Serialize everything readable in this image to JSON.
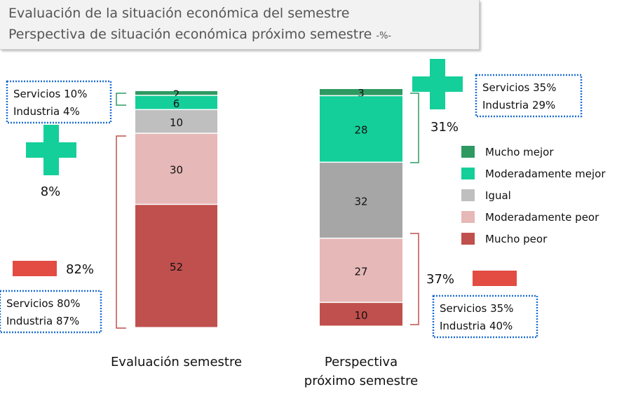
{
  "title_line1": "Evaluación de la situación económica del semestre",
  "title_line2": "Perspectiva de situación económica próximo semestre",
  "title_suffix": "-%-",
  "chart_data": {
    "type": "bar",
    "stacked": true,
    "categories": [
      "Evaluación semestre",
      "Perspectiva próximo semestre"
    ],
    "series": [
      {
        "name": "Mucho mejor",
        "values": [
          2,
          3
        ],
        "color": "#2e9a62"
      },
      {
        "name": "Moderadamente mejor",
        "values": [
          6,
          28
        ],
        "color": "#14cf9a"
      },
      {
        "name": "Igual",
        "values": [
          10,
          32
        ],
        "color": "#bfbfbf",
        "color2": "#a6a6a6"
      },
      {
        "name": "Moderadamente peor",
        "values": [
          30,
          27
        ],
        "color": "#e6b8b7"
      },
      {
        "name": "Mucho peor",
        "values": [
          52,
          10
        ],
        "color": "#c0504d"
      }
    ],
    "ylim": [
      0,
      100
    ],
    "legend": "right",
    "annotations": {
      "eval": {
        "positive_total": "8%",
        "negative_total": "82%",
        "positive_box": [
          "Servicios 10%",
          "Industria 4%"
        ],
        "negative_box": [
          "Servicios 80%",
          "Industria 87%"
        ]
      },
      "persp": {
        "positive_total": "31%",
        "negative_total": "37%",
        "positive_box": [
          "Servicios 35%",
          "Industria 29%"
        ],
        "negative_box": [
          "Servicios 35%",
          "Industria 40%"
        ]
      }
    }
  },
  "colors": {
    "plus": "#14cf9a",
    "minus": "#e24c43",
    "box_border": "#1f6fd1",
    "bracket_green": "#2e9a62",
    "bracket_red": "#c0504d"
  }
}
